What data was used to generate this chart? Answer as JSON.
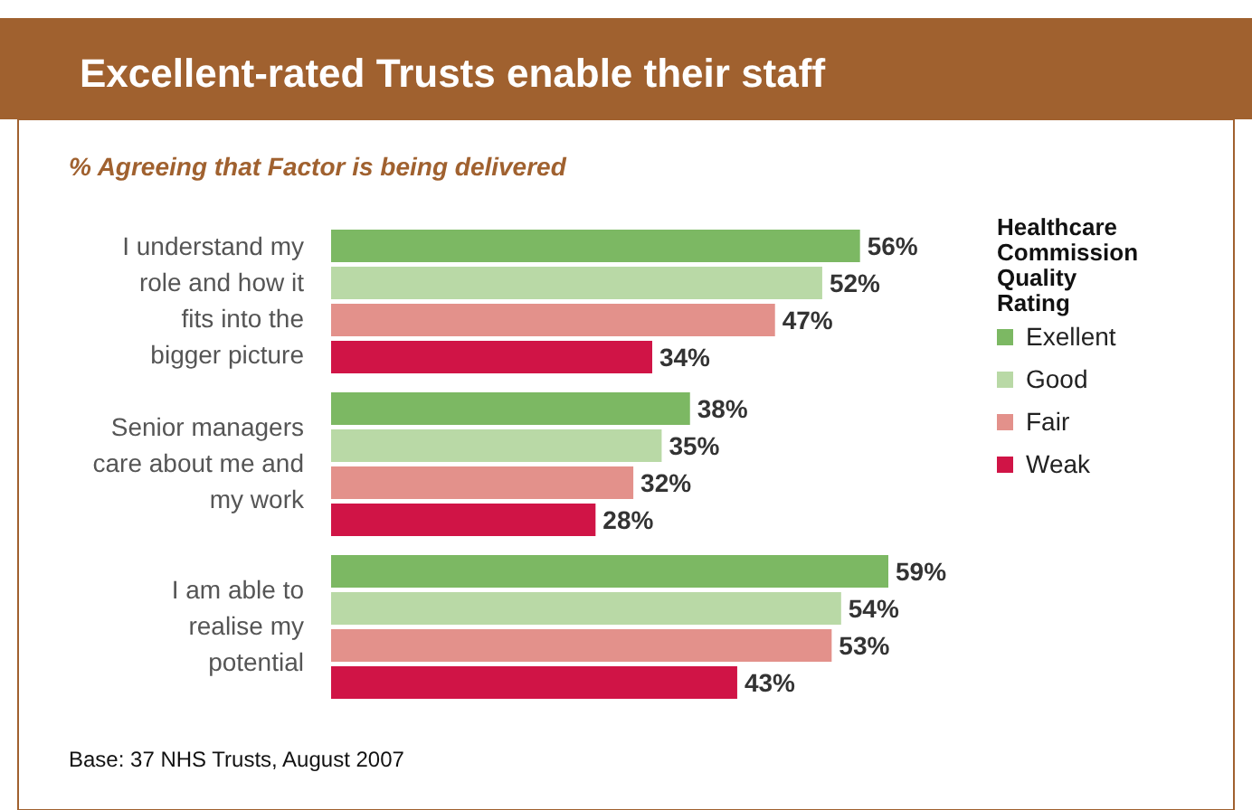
{
  "chart_data": {
    "type": "bar",
    "orientation": "horizontal",
    "title": "Excellent-rated Trusts enable their staff",
    "subtitle": "% Agreeing that Factor is being delivered",
    "categories": [
      "I understand my role and how it fits into the bigger picture",
      "Senior managers care about me and my work",
      "I am able to realise my potential"
    ],
    "series": [
      {
        "name": "Exellent",
        "color": "#7cb863",
        "values": [
          56,
          38,
          59
        ],
        "value_labels": [
          "56%",
          "38%",
          "59%"
        ]
      },
      {
        "name": "Good",
        "color": "#b9d9a6",
        "values": [
          52,
          35,
          54
        ],
        "value_labels": [
          "52%",
          "35%",
          "54%"
        ]
      },
      {
        "name": "Fair",
        "color": "#e3918b",
        "values": [
          47,
          32,
          53
        ],
        "value_labels": [
          "47%",
          "32%",
          "53%"
        ]
      },
      {
        "name": "Weak",
        "color": "#d01446",
        "values": [
          34,
          28,
          43
        ],
        "value_labels": [
          "34%",
          "28%",
          "43%"
        ]
      }
    ],
    "legend_title": "Healthcare Commission Quality Rating",
    "legend": "right",
    "annotations": [
      "Base:  37 NHS Trusts, August 2007"
    ]
  }
}
